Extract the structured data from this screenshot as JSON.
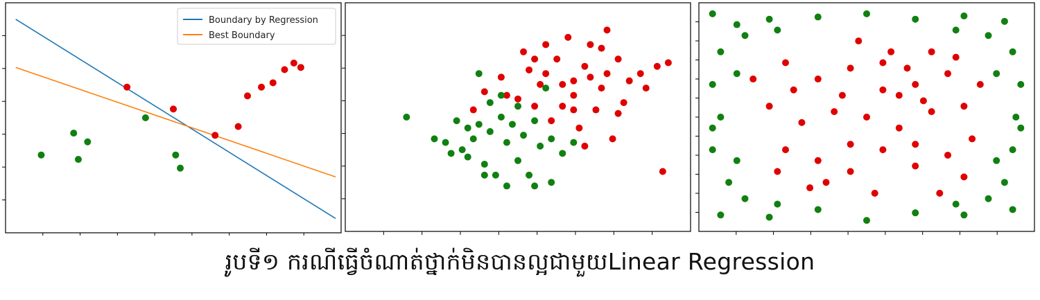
{
  "caption": "រូបទី១ ករណីធ្វើចំណាត់ថ្នាក់មិនបានល្អជាមួយLinear Regression",
  "colors": {
    "positive": "#e00000",
    "negative": "#108010",
    "regression_line": "#1f77b4",
    "best_line": "#ff7f0e"
  },
  "chart_data": [
    {
      "type": "scatter",
      "title": "",
      "xlabel": "",
      "ylabel": "",
      "xlim": [
        0,
        14
      ],
      "ylim": [
        0,
        10
      ],
      "legend_position": "top-right",
      "series": [
        {
          "name": "positive",
          "color": "#e00000",
          "points": [
            [
              5,
              6.4
            ],
            [
              7,
              5.4
            ],
            [
              8.8,
              4.2
            ],
            [
              9.8,
              4.6
            ],
            [
              10.2,
              6.0
            ],
            [
              10.8,
              6.4
            ],
            [
              11.3,
              6.6
            ],
            [
              11.8,
              7.2
            ],
            [
              12.2,
              7.5
            ],
            [
              12.5,
              7.3
            ]
          ]
        },
        {
          "name": "negative",
          "color": "#108010",
          "points": [
            [
              1.3,
              3.3
            ],
            [
              2.7,
              4.3
            ],
            [
              2.9,
              3.1
            ],
            [
              3.3,
              3.9
            ],
            [
              5.8,
              5.0
            ],
            [
              7.1,
              3.3
            ],
            [
              7.3,
              2.7
            ]
          ]
        }
      ],
      "lines": [
        {
          "name": "Boundary by Regression",
          "color": "#1f77b4",
          "points": [
            [
              0.2,
              9.5
            ],
            [
              14,
              0.4
            ]
          ]
        },
        {
          "name": "Best Boundary",
          "color": "#ff7f0e",
          "points": [
            [
              0.2,
              7.3
            ],
            [
              14,
              2.3
            ]
          ]
        }
      ]
    },
    {
      "type": "scatter",
      "title": "",
      "xlabel": "",
      "ylabel": "",
      "xlim": [
        -3,
        3
      ],
      "ylim": [
        -3,
        3
      ],
      "series": [
        {
          "name": "positive",
          "color": "#e00000",
          "points": [
            [
              0.5,
              1.2
            ],
            [
              0.8,
              0.9
            ],
            [
              1.0,
              0.6
            ],
            [
              1.2,
              1.4
            ],
            [
              0.3,
              0.3
            ],
            [
              0.6,
              -0.1
            ],
            [
              1.5,
              0.8
            ],
            [
              1.8,
              1.6
            ],
            [
              2.0,
              1.0
            ],
            [
              0.9,
              2.2
            ],
            [
              1.3,
              2.0
            ],
            [
              1.6,
              2.4
            ],
            [
              0.1,
              1.8
            ],
            [
              -0.3,
              1.1
            ],
            [
              0.4,
              0.9
            ],
            [
              1.1,
              -0.3
            ],
            [
              1.4,
              0.2
            ],
            [
              1.7,
              -0.6
            ],
            [
              2.5,
              1.4
            ],
            [
              2.6,
              -1.5
            ],
            [
              -0.6,
              0.7
            ],
            [
              0.0,
              0.5
            ],
            [
              0.7,
              1.6
            ],
            [
              1.9,
              0.4
            ],
            [
              1.2,
              -0.8
            ],
            [
              2.2,
              1.2
            ],
            [
              1.0,
              1.0
            ],
            [
              0.2,
              1.3
            ],
            [
              1.6,
              1.2
            ],
            [
              2.7,
              1.5
            ],
            [
              -0.2,
              0.6
            ],
            [
              0.5,
              2.0
            ],
            [
              1.3,
              1.1
            ],
            [
              0.8,
              0.3
            ],
            [
              -0.8,
              0.2
            ],
            [
              1.5,
              1.9
            ],
            [
              1.8,
              0.1
            ],
            [
              1.0,
              0.2
            ],
            [
              0.3,
              1.6
            ],
            [
              2.3,
              0.8
            ]
          ]
        },
        {
          "name": "negative",
          "color": "#108010",
          "points": [
            [
              -2.0,
              0.0
            ],
            [
              -1.5,
              -0.6
            ],
            [
              -1.3,
              -0.7
            ],
            [
              -0.9,
              -0.3
            ],
            [
              -0.7,
              -0.2
            ],
            [
              -0.5,
              -0.4
            ],
            [
              -0.3,
              0.0
            ],
            [
              -0.1,
              -0.2
            ],
            [
              0.1,
              -0.5
            ],
            [
              0.3,
              -0.1
            ],
            [
              -0.6,
              -1.3
            ],
            [
              -0.4,
              -1.6
            ],
            [
              -0.2,
              -1.9
            ],
            [
              0.0,
              -1.2
            ],
            [
              0.2,
              -1.6
            ],
            [
              0.4,
              -0.8
            ],
            [
              0.6,
              -0.6
            ],
            [
              -1.0,
              -0.9
            ],
            [
              -0.8,
              -0.6
            ],
            [
              -0.5,
              0.4
            ],
            [
              -0.3,
              0.6
            ],
            [
              0.0,
              0.3
            ],
            [
              -0.7,
              1.2
            ],
            [
              -1.1,
              -0.1
            ],
            [
              0.8,
              -1.0
            ],
            [
              1.0,
              -0.7
            ],
            [
              0.5,
              0.8
            ],
            [
              -0.2,
              -0.7
            ],
            [
              0.3,
              -1.9
            ],
            [
              -0.6,
              -1.6
            ],
            [
              0.6,
              -1.8
            ],
            [
              -0.9,
              -1.1
            ],
            [
              -1.2,
              -1.0
            ]
          ]
        }
      ]
    },
    {
      "type": "scatter",
      "title": "",
      "xlabel": "",
      "ylabel": "",
      "xlim": [
        -1,
        1
      ],
      "ylim": [
        -1,
        1
      ],
      "series": [
        {
          "name": "positive",
          "color": "#e00000",
          "points": [
            [
              -0.5,
              0.5
            ],
            [
              -0.3,
              0.35
            ],
            [
              -0.1,
              0.45
            ],
            [
              0.1,
              0.5
            ],
            [
              0.3,
              0.3
            ],
            [
              0.5,
              0.4
            ],
            [
              -0.6,
              0.1
            ],
            [
              -0.4,
              -0.05
            ],
            [
              -0.2,
              0.05
            ],
            [
              0.0,
              0.0
            ],
            [
              0.2,
              -0.1
            ],
            [
              0.4,
              0.05
            ],
            [
              0.6,
              0.1
            ],
            [
              -0.5,
              -0.3
            ],
            [
              -0.3,
              -0.4
            ],
            [
              -0.1,
              -0.25
            ],
            [
              0.1,
              -0.3
            ],
            [
              0.3,
              -0.45
            ],
            [
              0.5,
              -0.35
            ],
            [
              -0.35,
              -0.65
            ],
            [
              0.05,
              -0.7
            ],
            [
              0.45,
              -0.7
            ],
            [
              0.65,
              -0.2
            ],
            [
              -0.7,
              0.35
            ],
            [
              0.15,
              0.6
            ],
            [
              0.2,
              0.2
            ],
            [
              -0.15,
              0.2
            ],
            [
              0.55,
              0.55
            ],
            [
              -0.25,
              -0.6
            ],
            [
              0.3,
              -0.25
            ],
            [
              -0.05,
              0.7
            ],
            [
              0.4,
              0.6
            ],
            [
              -0.55,
              -0.5
            ],
            [
              0.6,
              -0.55
            ],
            [
              0.7,
              0.3
            ],
            [
              -0.45,
              0.25
            ],
            [
              0.35,
              0.15
            ],
            [
              -0.1,
              -0.5
            ],
            [
              0.1,
              0.25
            ],
            [
              0.25,
              0.45
            ]
          ]
        },
        {
          "name": "negative",
          "color": "#108010",
          "points": [
            [
              -0.95,
              0.95
            ],
            [
              -0.8,
              0.85
            ],
            [
              -0.6,
              0.9
            ],
            [
              -0.3,
              0.92
            ],
            [
              0.0,
              0.95
            ],
            [
              0.3,
              0.9
            ],
            [
              0.6,
              0.93
            ],
            [
              0.85,
              0.88
            ],
            [
              -0.9,
              0.6
            ],
            [
              0.9,
              0.6
            ],
            [
              -0.95,
              0.3
            ],
            [
              0.95,
              0.3
            ],
            [
              -0.9,
              0.0
            ],
            [
              0.92,
              0.0
            ],
            [
              -0.95,
              -0.3
            ],
            [
              0.9,
              -0.3
            ],
            [
              -0.85,
              -0.6
            ],
            [
              0.85,
              -0.6
            ],
            [
              -0.9,
              -0.9
            ],
            [
              -0.6,
              -0.92
            ],
            [
              -0.3,
              -0.85
            ],
            [
              0.0,
              -0.95
            ],
            [
              0.3,
              -0.88
            ],
            [
              0.6,
              -0.9
            ],
            [
              0.9,
              -0.85
            ],
            [
              -0.75,
              0.75
            ],
            [
              0.75,
              0.75
            ],
            [
              -0.75,
              -0.75
            ],
            [
              0.75,
              -0.75
            ],
            [
              0.8,
              0.4
            ],
            [
              -0.8,
              0.4
            ],
            [
              0.8,
              -0.4
            ],
            [
              -0.8,
              -0.4
            ],
            [
              0.55,
              0.8
            ],
            [
              -0.55,
              0.8
            ],
            [
              0.55,
              -0.8
            ],
            [
              -0.55,
              -0.8
            ],
            [
              0.95,
              -0.1
            ],
            [
              -0.95,
              -0.1
            ]
          ]
        }
      ]
    }
  ]
}
